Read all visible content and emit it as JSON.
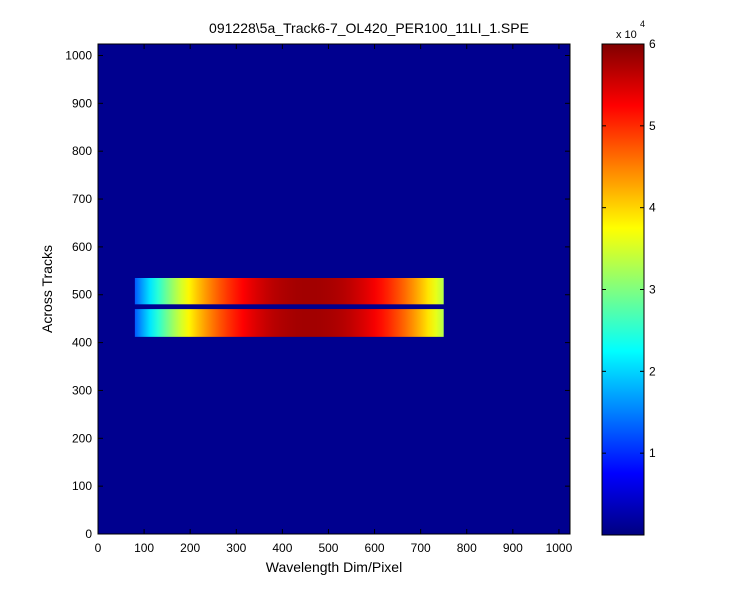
{
  "chart_data": {
    "type": "heatmap",
    "title": "091228\\5a_Track6-7_OL420_PER100_11LI_1.SPE",
    "xlabel": "Wavelength Dim/Pixel",
    "ylabel": "Across Tracks",
    "xlim": [
      0,
      1024
    ],
    "ylim": [
      0,
      1024
    ],
    "x_ticks": [
      "0",
      "100",
      "200",
      "300",
      "400",
      "500",
      "600",
      "700",
      "800",
      "900",
      "1000"
    ],
    "y_ticks": [
      "0",
      "100",
      "200",
      "300",
      "400",
      "500",
      "600",
      "700",
      "800",
      "900",
      "1000"
    ],
    "background_value": 0,
    "bands": [
      {
        "x_range": [
          80,
          750
        ],
        "y_range": [
          480,
          535
        ],
        "peak": 58000
      },
      {
        "x_range": [
          80,
          750
        ],
        "y_range": [
          412,
          470
        ],
        "peak": 58000
      }
    ],
    "band_center_x": 460,
    "colorbar": {
      "colormap": "jet",
      "range": [
        0,
        60000
      ],
      "ticks": [
        "1",
        "2",
        "3",
        "4",
        "5",
        "6"
      ],
      "exponent_label": "x 10",
      "exponent": "4"
    }
  }
}
